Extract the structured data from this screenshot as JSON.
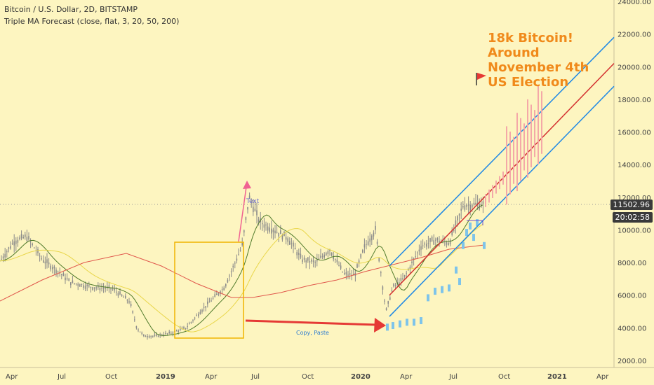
{
  "header": {
    "title": "Bitcoin / U.S. Dollar, 2D, BITSTAMP",
    "indicator": "Triple MA Forecast (close, flat, 3, 20, 50, 200)"
  },
  "price_axis": {
    "ticks": [
      "24000.00",
      "22000.00",
      "20000.00",
      "18000.00",
      "16000.00",
      "14000.00",
      "12000.00",
      "10000.00",
      "8000.00",
      "6000.00",
      "4000.00",
      "2000.00"
    ],
    "last_price": "11502.96",
    "countdown": "20:02:58"
  },
  "time_axis": {
    "ticks": [
      "Apr",
      "Jul",
      "Oct",
      "2019",
      "Apr",
      "Jul",
      "Oct",
      "2020",
      "Apr",
      "Jul",
      "Oct",
      "2021",
      "Apr"
    ]
  },
  "annotations": {
    "headline": [
      "18k Bitcoin!",
      "Around",
      "November 4th",
      "US Election"
    ],
    "copy_paste": "Copy, Paste",
    "text_label": "Text"
  },
  "colors": {
    "background": "#fdf5c0",
    "candles": "#8a8a8a",
    "forecast_candles": "#f4a8a8",
    "projection_bars": "#7ec4ea",
    "ma_fast": "#4f7a2a",
    "ma_mid": "#e9d64a",
    "ma_slow": "#e0554a",
    "channel_outer": "#1e88e5",
    "channel_mid": "#d32f2f",
    "arrow": "#e53935",
    "box": "#f0b400",
    "headline": "#f08a1b",
    "up_arrow": "#f06292"
  },
  "chart_data": {
    "type": "candlestick",
    "symbol": "Bitcoin / U.S. Dollar",
    "interval": "2D",
    "exchange": "BITSTAMP",
    "y_range": [
      2000,
      24000
    ],
    "approx_close_path": [
      {
        "x": "Apr 2018",
        "y": 8000
      },
      {
        "x": "May 2018",
        "y": 9500
      },
      {
        "x": "Jul 2018",
        "y": 7500
      },
      {
        "x": "Oct 2018",
        "y": 6400
      },
      {
        "x": "Dec 2018",
        "y": 3400
      },
      {
        "x": "2019",
        "y": 3600
      },
      {
        "x": "Apr 2019",
        "y": 5000
      },
      {
        "x": "Jul 2019",
        "y": 12000
      },
      {
        "x": "Oct 2019",
        "y": 8200
      },
      {
        "x": "2020",
        "y": 7200
      },
      {
        "x": "Feb 2020",
        "y": 10000
      },
      {
        "x": "Mar 2020",
        "y": 5000
      },
      {
        "x": "Jul 2020",
        "y": 9200
      },
      {
        "x": "Aug 2020",
        "y": 11500
      }
    ],
    "last_price": 11502.96
  }
}
